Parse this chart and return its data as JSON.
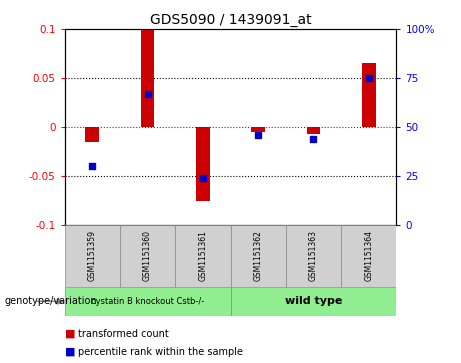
{
  "title": "GDS5090 / 1439091_at",
  "samples": [
    "GSM1151359",
    "GSM1151360",
    "GSM1151361",
    "GSM1151362",
    "GSM1151363",
    "GSM1151364"
  ],
  "red_values": [
    -0.015,
    0.1,
    -0.075,
    -0.005,
    -0.007,
    0.065
  ],
  "blue_values": [
    30,
    67,
    24,
    46,
    44,
    75
  ],
  "ylim_left": [
    -0.1,
    0.1
  ],
  "ylim_right": [
    0,
    100
  ],
  "yticks_left": [
    -0.1,
    -0.05,
    0,
    0.05,
    0.1
  ],
  "yticks_right": [
    0,
    25,
    50,
    75,
    100
  ],
  "ytick_labels_left": [
    "-0.1",
    "-0.05",
    "0",
    "0.05",
    "0.1"
  ],
  "ytick_labels_right": [
    "0",
    "25",
    "50",
    "75",
    "100%"
  ],
  "group1_indices": [
    0,
    1,
    2
  ],
  "group2_indices": [
    3,
    4,
    5
  ],
  "group1_label": "cystatin B knockout Cstb-/-",
  "group2_label": "wild type",
  "group1_color": "#90EE90",
  "group2_color": "#90EE90",
  "genotype_label": "genotype/variation",
  "legend_red": "transformed count",
  "legend_blue": "percentile rank within the sample",
  "bar_color": "#CC0000",
  "dot_color": "#0000CC",
  "background_color": "#ffffff",
  "hline_color_zero": "#CC0000",
  "hline_color_other": "#000000",
  "title_fontsize": 10,
  "tick_fontsize": 7.5,
  "sample_fontsize": 5.5,
  "legend_fontsize": 7,
  "genotype_fontsize": 7,
  "bar_width": 0.25
}
